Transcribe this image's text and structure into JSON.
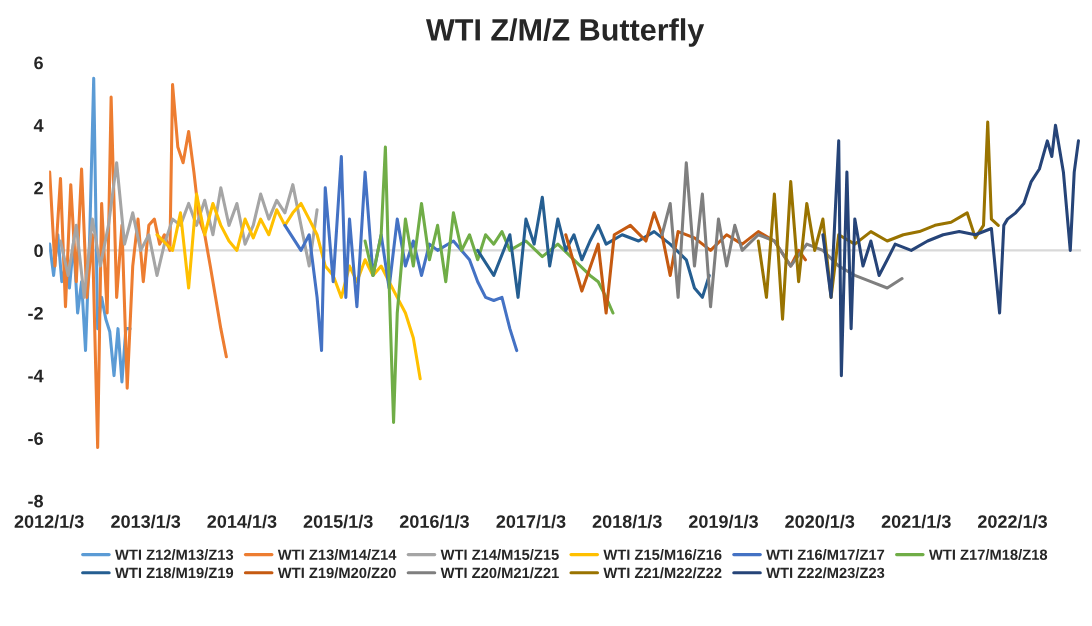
{
  "chart_data": {
    "type": "line",
    "title": "WTI Z/M/Z Butterfly",
    "xlim": [
      "2012-01-03",
      "2022-09-20"
    ],
    "xticks": [
      {
        "value": "2012-01-03",
        "label": "2012/1/3"
      },
      {
        "value": "2013-01-03",
        "label": "2013/1/3"
      },
      {
        "value": "2014-01-03",
        "label": "2014/1/3"
      },
      {
        "value": "2015-01-03",
        "label": "2015/1/3"
      },
      {
        "value": "2016-01-03",
        "label": "2016/1/3"
      },
      {
        "value": "2017-01-03",
        "label": "2017/1/3"
      },
      {
        "value": "2018-01-03",
        "label": "2018/1/3"
      },
      {
        "value": "2019-01-03",
        "label": "2019/1/3"
      },
      {
        "value": "2020-01-03",
        "label": "2020/1/3"
      },
      {
        "value": "2021-01-03",
        "label": "2021/1/3"
      },
      {
        "value": "2022-01-03",
        "label": "2022/1/3"
      }
    ],
    "ylim": [
      -8,
      6
    ],
    "yticks": [
      -8,
      -6,
      -4,
      -2,
      0,
      2,
      4,
      6
    ],
    "grid": false,
    "legend": "bottom",
    "marker": "none",
    "line_style": "solid",
    "ref_lines": [
      {
        "axis": "y",
        "value": 0,
        "color": "#d9d9d9"
      }
    ],
    "series": [
      {
        "name": "WTI Z12/M13/Z13",
        "color": "#5b9bd5",
        "x": [
          "2012-01-05",
          "2012-01-20",
          "2012-02-05",
          "2012-02-20",
          "2012-03-05",
          "2012-03-20",
          "2012-04-05",
          "2012-04-20",
          "2012-05-05",
          "2012-05-20",
          "2012-06-05",
          "2012-06-20",
          "2012-07-05",
          "2012-07-20",
          "2012-08-05",
          "2012-08-20",
          "2012-09-05",
          "2012-09-20",
          "2012-10-05",
          "2012-10-20",
          "2012-11-05"
        ],
        "values": [
          0.2,
          -0.8,
          0.5,
          -1.0,
          -0.5,
          -1.2,
          0.3,
          -2.0,
          -1.0,
          -3.2,
          0.5,
          5.5,
          -2.5,
          -1.5,
          -2.2,
          -2.6,
          -4.0,
          -2.5,
          -4.2,
          -2.5,
          -2.5
        ]
      },
      {
        "name": "WTI Z13/M14/Z14",
        "color": "#ed7d31",
        "x": [
          "2012-01-05",
          "2012-01-25",
          "2012-02-15",
          "2012-03-05",
          "2012-03-25",
          "2012-04-15",
          "2012-05-05",
          "2012-05-25",
          "2012-06-15",
          "2012-07-05",
          "2012-07-20",
          "2012-08-10",
          "2012-08-25",
          "2012-09-15",
          "2012-10-05",
          "2012-10-25",
          "2012-11-15",
          "2012-12-05",
          "2012-12-25",
          "2013-01-15",
          "2013-02-05",
          "2013-02-25",
          "2013-03-15",
          "2013-04-05",
          "2013-04-15",
          "2013-05-05",
          "2013-05-25",
          "2013-06-15",
          "2013-07-05",
          "2013-07-25",
          "2013-08-15",
          "2013-09-05",
          "2013-09-25",
          "2013-10-15",
          "2013-11-05"
        ],
        "values": [
          2.5,
          -0.5,
          2.3,
          -1.8,
          2.1,
          -1.0,
          2.6,
          -1.5,
          0.5,
          -6.3,
          1.5,
          -2.0,
          4.9,
          -1.5,
          0.8,
          -4.4,
          -0.5,
          1.0,
          -1.0,
          0.8,
          1.0,
          0.2,
          0.5,
          0.0,
          5.3,
          3.3,
          2.8,
          3.8,
          2.5,
          1.0,
          0.5,
          -0.5,
          -1.5,
          -2.5,
          -3.4
        ]
      },
      {
        "name": "WTI Z14/M15/Z15",
        "color": "#a5a5a5",
        "x": [
          "2012-02-15",
          "2012-03-15",
          "2012-04-15",
          "2012-05-15",
          "2012-06-15",
          "2012-07-15",
          "2012-08-15",
          "2012-09-15",
          "2012-10-15",
          "2012-11-15",
          "2012-12-15",
          "2013-01-15",
          "2013-02-15",
          "2013-03-15",
          "2013-04-15",
          "2013-05-15",
          "2013-06-15",
          "2013-07-15",
          "2013-08-15",
          "2013-09-15",
          "2013-10-15",
          "2013-11-15",
          "2013-12-15",
          "2014-01-15",
          "2014-02-15",
          "2014-03-15",
          "2014-04-15",
          "2014-05-15",
          "2014-06-15",
          "2014-07-15",
          "2014-08-15",
          "2014-09-15",
          "2014-10-15"
        ],
        "values": [
          0.3,
          -0.8,
          0.8,
          -1.5,
          1.0,
          -0.5,
          0.8,
          2.8,
          0.2,
          1.2,
          0.0,
          0.5,
          -0.8,
          0.2,
          1.0,
          0.8,
          1.5,
          0.8,
          1.6,
          0.5,
          2.0,
          0.8,
          1.5,
          0.2,
          0.8,
          1.8,
          1.0,
          1.6,
          1.2,
          2.1,
          0.8,
          -0.5,
          1.3
        ]
      },
      {
        "name": "WTI Z15/M16/Z16",
        "color": "#ffc000",
        "x": [
          "2013-02-15",
          "2013-04-15",
          "2013-05-15",
          "2013-06-15",
          "2013-07-15",
          "2013-08-15",
          "2013-09-15",
          "2013-10-15",
          "2013-11-15",
          "2013-12-15",
          "2014-01-15",
          "2014-02-15",
          "2014-03-15",
          "2014-04-15",
          "2014-05-15",
          "2014-06-15",
          "2014-07-15",
          "2014-08-15",
          "2014-09-15",
          "2014-10-15",
          "2014-11-15",
          "2014-12-15",
          "2015-01-15",
          "2015-02-15",
          "2015-03-15",
          "2015-04-15",
          "2015-05-15",
          "2015-06-15",
          "2015-07-15",
          "2015-08-15",
          "2015-09-15",
          "2015-10-15",
          "2015-11-10"
        ],
        "values": [
          0.5,
          0.0,
          1.2,
          -1.2,
          1.8,
          0.5,
          1.5,
          0.8,
          0.3,
          0.0,
          1.0,
          0.4,
          1.0,
          0.5,
          1.3,
          0.8,
          1.2,
          1.5,
          1.0,
          0.5,
          -0.5,
          -0.8,
          -1.5,
          -0.5,
          -1.0,
          -0.3,
          -0.8,
          -0.5,
          -1.0,
          -1.5,
          -2.0,
          -2.8,
          -4.1
        ]
      },
      {
        "name": "WTI Z16/M17/Z17",
        "color": "#4472c4",
        "x": [
          "2014-06-15",
          "2014-08-15",
          "2014-09-15",
          "2014-10-15",
          "2014-11-01",
          "2014-11-15",
          "2014-12-15",
          "2015-01-15",
          "2015-02-01",
          "2015-02-15",
          "2015-03-15",
          "2015-04-15",
          "2015-05-15",
          "2015-06-15",
          "2015-07-15",
          "2015-08-15",
          "2015-09-15",
          "2015-10-15",
          "2015-11-15",
          "2015-12-15",
          "2016-01-15",
          "2016-03-15",
          "2016-05-15",
          "2016-06-15",
          "2016-07-15",
          "2016-08-15",
          "2016-09-15",
          "2016-10-15",
          "2016-11-10"
        ],
        "values": [
          0.8,
          0.0,
          0.5,
          -1.5,
          -3.2,
          2.0,
          -1.0,
          3.0,
          -1.5,
          1.0,
          -1.8,
          2.5,
          -0.8,
          0.5,
          -1.2,
          1.0,
          -0.5,
          0.3,
          -0.8,
          0.2,
          0.0,
          0.3,
          -0.3,
          -1.0,
          -1.5,
          -1.6,
          -1.5,
          -2.5,
          -3.2
        ]
      },
      {
        "name": "WTI Z17/M18/Z18",
        "color": "#70ad47",
        "x": [
          "2015-04-15",
          "2015-05-15",
          "2015-06-15",
          "2015-07-01",
          "2015-07-15",
          "2015-08-01",
          "2015-08-15",
          "2015-09-15",
          "2015-10-15",
          "2015-11-15",
          "2015-12-15",
          "2016-01-15",
          "2016-02-15",
          "2016-03-15",
          "2016-04-15",
          "2016-05-15",
          "2016-06-15",
          "2016-07-15",
          "2016-08-15",
          "2016-09-15",
          "2016-10-15",
          "2016-12-15",
          "2017-02-15",
          "2017-04-15",
          "2017-06-15",
          "2017-08-15",
          "2017-09-15",
          "2017-10-15",
          "2017-11-10"
        ],
        "values": [
          0.3,
          -0.8,
          0.5,
          3.3,
          -1.0,
          -5.5,
          -2.0,
          1.0,
          -0.5,
          1.5,
          -0.3,
          0.8,
          -1.0,
          1.2,
          0.0,
          0.5,
          -0.3,
          0.5,
          0.2,
          0.6,
          0.0,
          0.3,
          -0.2,
          0.2,
          -0.3,
          -0.8,
          -1.0,
          -1.5,
          -2.0
        ]
      },
      {
        "name": "WTI Z18/M19/Z19",
        "color": "#255e91",
        "x": [
          "2016-06-15",
          "2016-08-15",
          "2016-10-15",
          "2016-11-15",
          "2016-12-15",
          "2017-01-15",
          "2017-02-15",
          "2017-03-15",
          "2017-04-15",
          "2017-05-15",
          "2017-06-15",
          "2017-07-15",
          "2017-08-15",
          "2017-09-15",
          "2017-10-15",
          "2017-12-15",
          "2018-02-15",
          "2018-04-15",
          "2018-06-15",
          "2018-08-15",
          "2018-09-15",
          "2018-10-15",
          "2018-11-10"
        ],
        "values": [
          0.0,
          -0.8,
          0.5,
          -1.5,
          1.0,
          0.2,
          1.7,
          -0.5,
          1.0,
          0.0,
          0.5,
          -0.3,
          0.3,
          0.8,
          0.2,
          0.5,
          0.3,
          0.6,
          0.2,
          -0.3,
          -1.2,
          -1.5,
          -0.8
        ]
      },
      {
        "name": "WTI Z19/M20/Z20",
        "color": "#c55a11",
        "x": [
          "2017-05-15",
          "2017-07-15",
          "2017-09-15",
          "2017-10-15",
          "2017-11-15",
          "2018-01-15",
          "2018-03-15",
          "2018-04-15",
          "2018-05-15",
          "2018-06-15",
          "2018-07-15",
          "2018-09-15",
          "2018-11-15",
          "2019-01-15",
          "2019-03-15",
          "2019-05-15",
          "2019-07-15",
          "2019-09-15",
          "2019-10-15",
          "2019-11-10"
        ],
        "values": [
          0.5,
          -1.3,
          0.2,
          -2.0,
          0.5,
          0.8,
          0.3,
          1.2,
          0.5,
          -0.8,
          0.6,
          0.4,
          0.0,
          0.5,
          0.2,
          0.6,
          0.3,
          -0.5,
          0.0,
          -0.3
        ]
      },
      {
        "name": "WTI Z20/M21/Z21",
        "color": "#7f7f7f",
        "x": [
          "2018-05-15",
          "2018-06-15",
          "2018-07-15",
          "2018-08-15",
          "2018-09-15",
          "2018-10-15",
          "2018-11-15",
          "2018-12-15",
          "2019-01-15",
          "2019-02-15",
          "2019-03-15",
          "2019-05-15",
          "2019-07-15",
          "2019-09-15",
          "2019-11-15",
          "2020-01-15",
          "2020-03-15",
          "2020-05-15",
          "2020-07-15",
          "2020-09-15",
          "2020-11-10"
        ],
        "values": [
          0.5,
          1.5,
          -1.5,
          2.8,
          -0.5,
          1.8,
          -1.8,
          1.0,
          -0.5,
          0.8,
          0.0,
          0.5,
          0.3,
          -0.5,
          0.2,
          0.0,
          -0.5,
          -0.8,
          -1.0,
          -1.2,
          -0.9
        ]
      },
      {
        "name": "WTI Z21/M22/Z22",
        "color": "#997300",
        "x": [
          "2019-05-15",
          "2019-06-15",
          "2019-07-15",
          "2019-08-15",
          "2019-09-15",
          "2019-10-15",
          "2019-11-15",
          "2019-12-15",
          "2020-01-15",
          "2020-02-15",
          "2020-03-15",
          "2020-05-15",
          "2020-07-15",
          "2020-09-15",
          "2020-11-15",
          "2021-01-15",
          "2021-03-15",
          "2021-05-15",
          "2021-07-15",
          "2021-08-15",
          "2021-09-15",
          "2021-10-01",
          "2021-10-15",
          "2021-11-10"
        ],
        "values": [
          0.3,
          -1.5,
          1.8,
          -2.2,
          2.2,
          -1.0,
          1.5,
          0.0,
          1.0,
          -1.5,
          0.5,
          0.2,
          0.6,
          0.3,
          0.5,
          0.6,
          0.8,
          0.9,
          1.2,
          0.4,
          0.8,
          4.1,
          1.0,
          0.8
        ]
      },
      {
        "name": "WTI Z22/M23/Z23",
        "color": "#264478",
        "x": [
          "2020-01-15",
          "2020-02-15",
          "2020-03-15",
          "2020-03-25",
          "2020-04-15",
          "2020-05-01",
          "2020-05-15",
          "2020-06-15",
          "2020-07-15",
          "2020-08-15",
          "2020-09-15",
          "2020-10-15",
          "2020-12-15",
          "2021-02-15",
          "2021-04-15",
          "2021-06-15",
          "2021-08-15",
          "2021-10-15",
          "2021-11-15",
          "2021-12-01",
          "2021-12-15",
          "2022-01-15",
          "2022-02-15",
          "2022-03-15",
          "2022-04-15",
          "2022-05-15",
          "2022-06-01",
          "2022-06-15",
          "2022-07-01",
          "2022-07-15",
          "2022-08-10",
          "2022-08-25",
          "2022-09-10"
        ],
        "values": [
          0.5,
          -1.5,
          3.5,
          -4.0,
          2.5,
          -2.5,
          1.0,
          -0.5,
          0.3,
          -0.8,
          -0.3,
          0.2,
          0.0,
          0.3,
          0.5,
          0.6,
          0.5,
          0.7,
          -2.0,
          0.8,
          1.0,
          1.2,
          1.5,
          2.2,
          2.6,
          3.5,
          3.0,
          4.0,
          3.2,
          2.5,
          0.0,
          2.5,
          3.5
        ]
      }
    ]
  }
}
